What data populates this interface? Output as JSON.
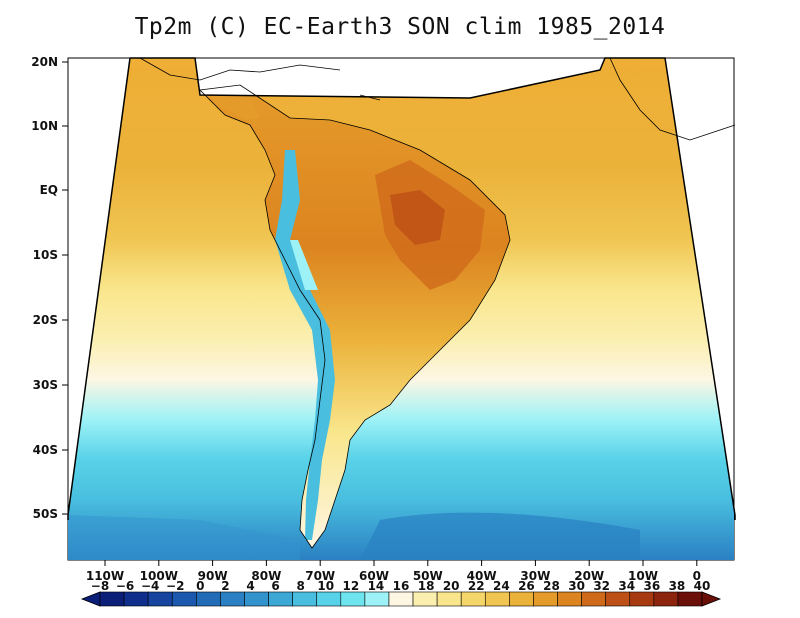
{
  "title": "Tp2m (C) EC-Earth3 SON clim 1985_2014",
  "axes": {
    "lat_labels": [
      "20N",
      "10N",
      "EQ",
      "10S",
      "20S",
      "30S",
      "40S",
      "50S"
    ],
    "lon_labels": [
      "110W",
      "100W",
      "90W",
      "80W",
      "70W",
      "60W",
      "50W",
      "40W",
      "30W",
      "20W",
      "10W",
      "0"
    ]
  },
  "colorbar": {
    "labels": [
      "-8",
      "-6",
      "-4",
      "-2",
      "0",
      "2",
      "4",
      "6",
      "8",
      "10",
      "12",
      "14",
      "16",
      "18",
      "20",
      "22",
      "24",
      "26",
      "28",
      "30",
      "32",
      "34",
      "36",
      "38",
      "40"
    ],
    "colors": [
      "#0b1e78",
      "#102f8c",
      "#16449e",
      "#1c58ad",
      "#226bb7",
      "#2a80c2",
      "#3394cd",
      "#3da8d6",
      "#49bedf",
      "#58d2e8",
      "#6ee4ef",
      "#9df2f7",
      "#fdf6e3",
      "#fbefb0",
      "#f9e68c",
      "#f5d66a",
      "#f0c552",
      "#ebb23a",
      "#e59b2a",
      "#dc8420",
      "#cf6a1a",
      "#bd5016",
      "#a83a12",
      "#8c240e",
      "#6a1009"
    ]
  },
  "colors": {
    "ocean_south_deep": "#2a80c2",
    "ocean_south": "#58d2e8",
    "ocean_mid": "#fdf6e3",
    "ocean_subtrop": "#f5d66a",
    "ocean_trop": "#ebb23a",
    "land_hot": "#cf6a1a",
    "andes_cold": "#49bedf"
  }
}
